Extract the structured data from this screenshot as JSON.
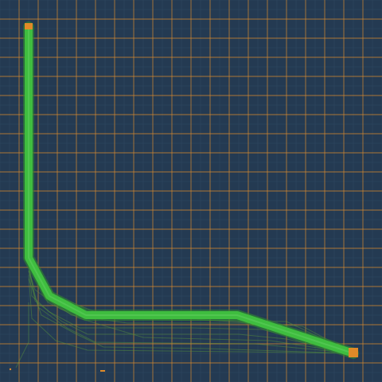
{
  "colors": {
    "background": "#243a52",
    "grid_major": "#d98a2c",
    "grid_minor": "#2f4862",
    "path_main": "#3fbd3f",
    "path_faint": "#5a9a3a",
    "endpoint": "#e08a28"
  },
  "scene": {
    "grid": true,
    "start_marker": "start-node",
    "end_marker": "goal-node"
  }
}
